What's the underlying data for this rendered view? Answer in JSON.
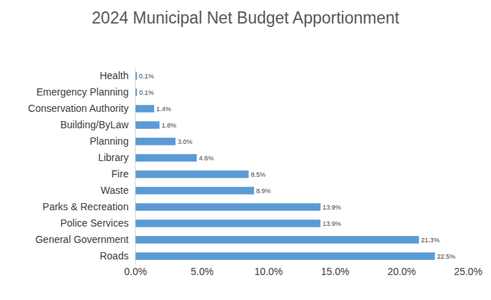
{
  "chart_data": {
    "type": "bar",
    "orientation": "horizontal",
    "title": "2024 Municipal Net Budget Apportionment",
    "categories": [
      "Roads",
      "General Government",
      "Police Services",
      "Parks & Recreation",
      "Waste",
      "Fire",
      "Library",
      "Planning",
      "Building/ByLaw",
      "Conservation Authority",
      "Emergency Planning",
      "Health"
    ],
    "values": [
      22.5,
      21.3,
      13.9,
      13.9,
      8.9,
      8.5,
      4.6,
      3.0,
      1.8,
      1.4,
      0.1,
      0.1
    ],
    "value_labels": [
      "22.5%",
      "21.3%",
      "13.9%",
      "13.9%",
      "8.9%",
      "8.5%",
      "4.6%",
      "3.0%",
      "1.8%",
      "1.4%",
      "0.1%",
      "0.1%"
    ],
    "data_labels": true,
    "color": "#5b9bd5",
    "xlim": [
      0,
      25
    ],
    "xticks": [
      {
        "value": 0,
        "label": "0.0%"
      },
      {
        "value": 5,
        "label": "5.0%"
      },
      {
        "value": 10,
        "label": "10.0%"
      },
      {
        "value": 15,
        "label": "15.0%"
      },
      {
        "value": 20,
        "label": "20.0%"
      },
      {
        "value": 25,
        "label": "25.0%"
      }
    ],
    "grid": false
  }
}
